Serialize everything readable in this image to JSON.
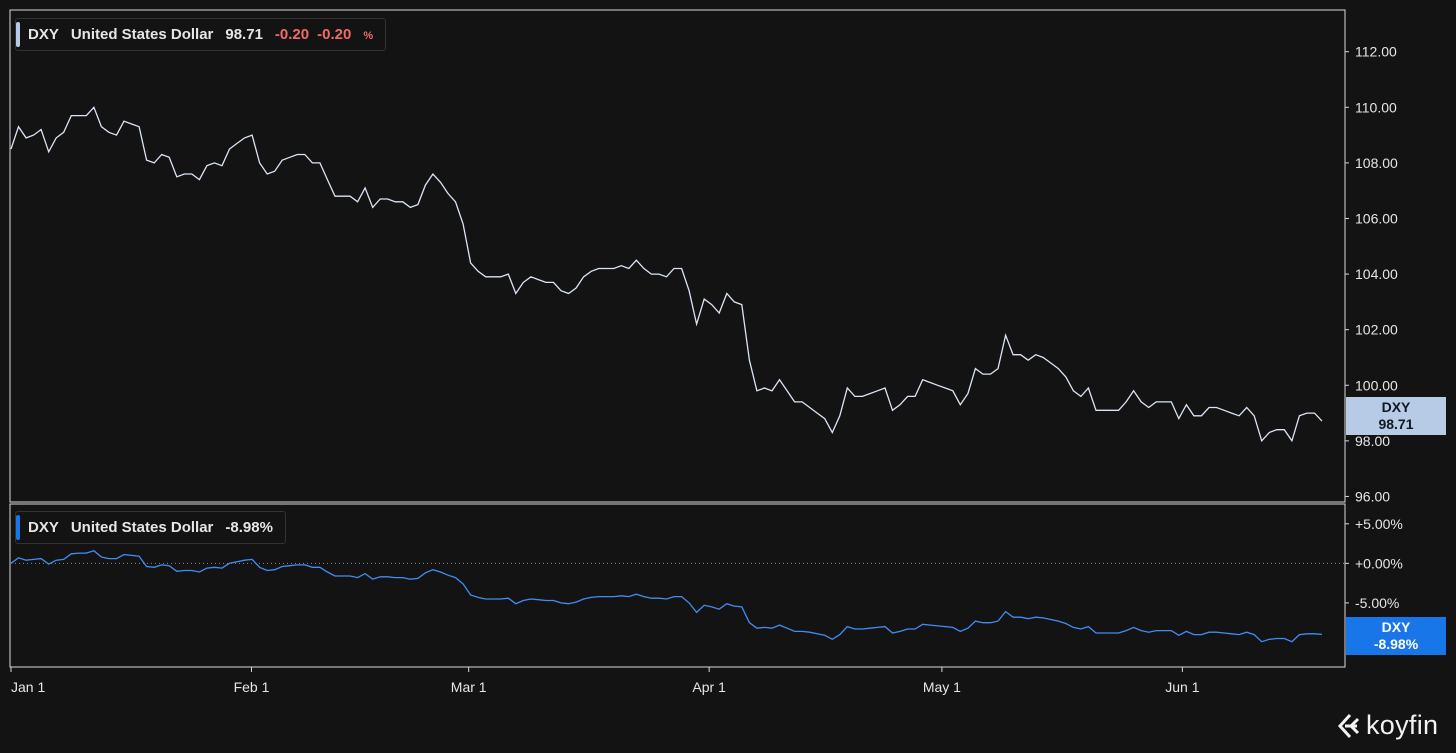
{
  "top_legend": {
    "ticker": "DXY",
    "name": "United States Dollar",
    "price": "98.71",
    "change": "-0.20",
    "change_pct": "-0.20",
    "pct_sign": "%"
  },
  "bottom_legend": {
    "ticker": "DXY",
    "name": "United States Dollar",
    "value": "-8.98%"
  },
  "top_tag": {
    "ticker": "DXY",
    "value": "98.71"
  },
  "bottom_tag": {
    "ticker": "DXY",
    "value": "-8.98%"
  },
  "brand": "koyfin",
  "colors": {
    "background": "#131313",
    "price_line": "#dbe4f6",
    "pct_line": "#3f8ef5",
    "price_tag": "#b8cbe6",
    "pct_tag": "#1976e8",
    "negative": "#f06a6a",
    "axis": "#e6e6e6"
  },
  "chart_data": [
    {
      "type": "line",
      "series": [
        {
          "name": "DXY",
          "values": [
            108.5,
            109.3,
            108.9,
            109.0,
            109.2,
            108.4,
            108.9,
            109.1,
            109.7,
            109.7,
            109.7,
            110.0,
            109.3,
            109.1,
            109.0,
            109.5,
            109.4,
            109.3,
            108.1,
            108.0,
            108.3,
            108.2,
            107.5,
            107.6,
            107.6,
            107.4,
            107.9,
            108.0,
            107.9,
            108.5,
            108.7,
            108.9,
            109.0,
            108.0,
            107.6,
            107.7,
            108.1,
            108.2,
            108.3,
            108.3,
            108.0,
            108.0,
            107.4,
            106.8,
            106.8,
            106.8,
            106.6,
            107.1,
            106.4,
            106.7,
            106.7,
            106.6,
            106.6,
            106.4,
            106.5,
            107.2,
            107.6,
            107.3,
            106.9,
            106.6,
            105.8,
            104.4,
            104.1,
            103.9,
            103.9,
            103.9,
            104.0,
            103.3,
            103.7,
            103.9,
            103.8,
            103.7,
            103.7,
            103.4,
            103.3,
            103.5,
            103.9,
            104.1,
            104.2,
            104.2,
            104.2,
            104.3,
            104.2,
            104.5,
            104.2,
            104.0,
            104.0,
            103.9,
            104.2,
            104.2,
            103.4,
            102.2,
            103.1,
            102.9,
            102.6,
            103.3,
            103.0,
            102.9,
            100.9,
            99.8,
            99.9,
            99.8,
            100.2,
            99.8,
            99.4,
            99.4,
            99.2,
            99.0,
            98.8,
            98.3,
            98.9,
            99.9,
            99.6,
            99.6,
            99.7,
            99.8,
            99.9,
            99.1,
            99.3,
            99.6,
            99.6,
            100.2,
            100.1,
            100.0,
            99.9,
            99.8,
            99.3,
            99.7,
            100.6,
            100.4,
            100.4,
            100.6,
            101.8,
            101.1,
            101.1,
            100.9,
            101.1,
            101.0,
            100.8,
            100.6,
            100.3,
            99.8,
            99.6,
            99.9,
            99.1,
            99.1,
            99.1,
            99.1,
            99.4,
            99.8,
            99.4,
            99.2,
            99.4,
            99.4,
            99.4,
            98.8,
            99.3,
            98.9,
            98.9,
            99.2,
            99.2,
            99.1,
            99.0,
            98.9,
            99.2,
            98.9,
            98.0,
            98.3,
            98.4,
            98.4,
            98.0,
            98.9,
            99.0,
            99.0,
            98.71
          ]
        }
      ],
      "ylim": [
        95.8,
        113.5
      ],
      "y_ticks": [
        "96.00",
        "98.00",
        "100.00",
        "102.00",
        "104.00",
        "106.00",
        "108.00",
        "110.00",
        "112.00"
      ]
    },
    {
      "type": "line",
      "series": [
        {
          "name": "DXY",
          "values": [
            0.0,
            0.7,
            0.4,
            0.5,
            0.6,
            -0.1,
            0.4,
            0.5,
            1.2,
            1.3,
            1.3,
            1.6,
            0.8,
            0.6,
            0.6,
            1.1,
            1.0,
            0.9,
            -0.4,
            -0.5,
            -0.2,
            -0.3,
            -1.0,
            -0.9,
            -0.9,
            -1.1,
            -0.6,
            -0.5,
            -0.6,
            0.0,
            0.2,
            0.4,
            0.5,
            -0.5,
            -0.9,
            -0.8,
            -0.4,
            -0.3,
            -0.2,
            -0.2,
            -0.5,
            -0.5,
            -1.1,
            -1.6,
            -1.6,
            -1.6,
            -1.8,
            -1.3,
            -2.0,
            -1.7,
            -1.7,
            -1.8,
            -1.8,
            -2.0,
            -1.9,
            -1.2,
            -0.8,
            -1.1,
            -1.5,
            -1.8,
            -2.6,
            -4.0,
            -4.3,
            -4.5,
            -4.5,
            -4.5,
            -4.4,
            -5.1,
            -4.7,
            -4.5,
            -4.6,
            -4.7,
            -4.7,
            -5.0,
            -5.1,
            -4.9,
            -4.5,
            -4.3,
            -4.2,
            -4.2,
            -4.2,
            -4.1,
            -4.2,
            -3.9,
            -4.2,
            -4.4,
            -4.4,
            -4.5,
            -4.2,
            -4.2,
            -5.0,
            -6.2,
            -5.3,
            -5.5,
            -5.8,
            -5.1,
            -5.4,
            -5.5,
            -7.5,
            -8.2,
            -8.1,
            -8.2,
            -7.8,
            -8.2,
            -8.6,
            -8.6,
            -8.7,
            -8.9,
            -9.1,
            -9.6,
            -9.0,
            -8.0,
            -8.3,
            -8.3,
            -8.2,
            -8.1,
            -8.0,
            -8.8,
            -8.6,
            -8.3,
            -8.3,
            -7.7,
            -7.8,
            -7.9,
            -8.0,
            -8.1,
            -8.6,
            -8.2,
            -7.3,
            -7.5,
            -7.5,
            -7.3,
            -6.1,
            -6.8,
            -6.8,
            -7.0,
            -6.8,
            -6.9,
            -7.1,
            -7.3,
            -7.6,
            -8.1,
            -8.3,
            -8.0,
            -8.8,
            -8.8,
            -8.8,
            -8.8,
            -8.5,
            -8.1,
            -8.5,
            -8.7,
            -8.5,
            -8.5,
            -8.5,
            -9.1,
            -8.6,
            -9.0,
            -9.0,
            -8.7,
            -8.7,
            -8.8,
            -8.9,
            -9.0,
            -8.7,
            -9.0,
            -9.9,
            -9.6,
            -9.5,
            -9.5,
            -9.9,
            -9.0,
            -8.9,
            -8.9,
            -8.98
          ]
        }
      ],
      "ylim": [
        -13.1,
        7.5
      ],
      "y_ticks": [
        "+5.00%",
        "+0.00%",
        "-5.00%"
      ],
      "zero_line": 0
    }
  ],
  "x_ticks": [
    "Jan 1",
    "Feb 1",
    "Mar 1",
    "Apr 1",
    "May 1",
    "Jun 1"
  ],
  "x_tick_positions": [
    0,
    31,
    59,
    90,
    120,
    151
  ]
}
